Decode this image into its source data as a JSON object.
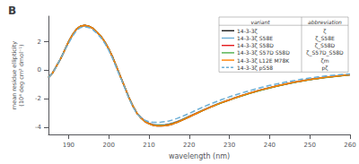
{
  "chart_data": {
    "type": "line",
    "title": "B",
    "xlabel": "wavelength (nm)",
    "ylabel": "mean residue ellipticity\n(10⁴ deg cm² dmol⁻¹)",
    "xlim": [
      185,
      260
    ],
    "xticks": [
      190,
      200,
      210,
      220,
      230,
      240,
      250,
      260
    ],
    "ylim": [
      -4.5,
      3.8
    ],
    "yticks": [
      -4,
      -2,
      0,
      2
    ],
    "grid": false,
    "legend": "upper right",
    "legend_header": [
      "variant",
      "abbreviation"
    ],
    "x": [
      185,
      186,
      187,
      188,
      189,
      190,
      191,
      192,
      193,
      194,
      195,
      196,
      197,
      198,
      199,
      200,
      201,
      202,
      203,
      204,
      205,
      206,
      207,
      208,
      209,
      210,
      211,
      212,
      213,
      214,
      215,
      216,
      217,
      218,
      219,
      220,
      221,
      222,
      223,
      224,
      225,
      226,
      227,
      228,
      229,
      230,
      231,
      232,
      233,
      234,
      235,
      236,
      237,
      238,
      239,
      240,
      241,
      242,
      243,
      244,
      245,
      246,
      247,
      248,
      249,
      250,
      251,
      252,
      253,
      254,
      255,
      256,
      257,
      258,
      259,
      260
    ],
    "series": [
      {
        "name": "14-3-3ζ",
        "abbreviation": "ζ",
        "color": "#1a1a1a",
        "line_style": "solid",
        "values": [
          -0.5,
          -0.2,
          0.3,
          0.8,
          1.4,
          2.0,
          2.5,
          2.9,
          3.1,
          3.15,
          3.1,
          2.95,
          2.7,
          2.4,
          2.0,
          1.5,
          0.9,
          0.2,
          -0.5,
          -1.2,
          -1.9,
          -2.5,
          -3.0,
          -3.35,
          -3.6,
          -3.75,
          -3.85,
          -3.9,
          -3.9,
          -3.88,
          -3.83,
          -3.75,
          -3.65,
          -3.53,
          -3.4,
          -3.27,
          -3.13,
          -3.0,
          -2.87,
          -2.74,
          -2.62,
          -2.5,
          -2.38,
          -2.27,
          -2.17,
          -2.07,
          -1.97,
          -1.87,
          -1.78,
          -1.69,
          -1.6,
          -1.52,
          -1.44,
          -1.36,
          -1.29,
          -1.22,
          -1.15,
          -1.08,
          -1.02,
          -0.96,
          -0.9,
          -0.84,
          -0.79,
          -0.74,
          -0.69,
          -0.64,
          -0.6,
          -0.56,
          -0.52,
          -0.48,
          -0.45,
          -0.42,
          -0.39,
          -0.36,
          -0.33,
          -0.3
        ]
      },
      {
        "name": "14-3-3ζ S58E",
        "abbreviation": "ζ_S58E",
        "color": "#6baed6",
        "line_style": "solid",
        "values": [
          -0.5,
          -0.2,
          0.3,
          0.8,
          1.4,
          2.0,
          2.5,
          2.9,
          3.1,
          3.15,
          3.1,
          2.95,
          2.7,
          2.4,
          2.0,
          1.5,
          0.9,
          0.2,
          -0.5,
          -1.2,
          -1.9,
          -2.5,
          -3.0,
          -3.3,
          -3.55,
          -3.7,
          -3.78,
          -3.82,
          -3.82,
          -3.8,
          -3.75,
          -3.68,
          -3.58,
          -3.47,
          -3.34,
          -3.22,
          -3.09,
          -2.96,
          -2.83,
          -2.71,
          -2.59,
          -2.47,
          -2.36,
          -2.25,
          -2.15,
          -2.05,
          -1.95,
          -1.86,
          -1.77,
          -1.68,
          -1.59,
          -1.51,
          -1.43,
          -1.35,
          -1.28,
          -1.21,
          -1.14,
          -1.07,
          -1.01,
          -0.95,
          -0.89,
          -0.83,
          -0.78,
          -0.73,
          -0.68,
          -0.63,
          -0.59,
          -0.55,
          -0.51,
          -0.47,
          -0.44,
          -0.41,
          -0.38,
          -0.35,
          -0.32,
          -0.29
        ]
      },
      {
        "name": "14-3-3ζ S58D",
        "abbreviation": "ζ_S58D",
        "color": "#e41a1c",
        "line_style": "solid",
        "values": [
          -0.5,
          -0.2,
          0.3,
          0.8,
          1.4,
          2.0,
          2.5,
          2.9,
          3.1,
          3.15,
          3.1,
          2.95,
          2.7,
          2.4,
          2.0,
          1.5,
          0.9,
          0.2,
          -0.5,
          -1.2,
          -1.9,
          -2.5,
          -3.0,
          -3.32,
          -3.57,
          -3.72,
          -3.82,
          -3.86,
          -3.86,
          -3.84,
          -3.79,
          -3.71,
          -3.61,
          -3.5,
          -3.37,
          -3.24,
          -3.11,
          -2.98,
          -2.85,
          -2.73,
          -2.61,
          -2.49,
          -2.38,
          -2.27,
          -2.17,
          -2.07,
          -1.97,
          -1.88,
          -1.79,
          -1.7,
          -1.61,
          -1.53,
          -1.45,
          -1.37,
          -1.3,
          -1.23,
          -1.16,
          -1.09,
          -1.03,
          -0.97,
          -0.91,
          -0.85,
          -0.8,
          -0.75,
          -0.7,
          -0.65,
          -0.61,
          -0.57,
          -0.53,
          -0.49,
          -0.46,
          -0.43,
          -0.4,
          -0.37,
          -0.34,
          -0.31
        ]
      },
      {
        "name": "14-3-3ζ S57D S58D",
        "abbreviation": "ζ_S57D_S58D",
        "color": "#4daf4a",
        "line_style": "solid",
        "values": [
          -0.5,
          -0.2,
          0.3,
          0.8,
          1.4,
          2.0,
          2.5,
          2.9,
          3.1,
          3.15,
          3.1,
          2.95,
          2.7,
          2.4,
          2.0,
          1.5,
          0.9,
          0.2,
          -0.5,
          -1.2,
          -1.9,
          -2.5,
          -3.0,
          -3.33,
          -3.58,
          -3.73,
          -3.83,
          -3.87,
          -3.87,
          -3.85,
          -3.8,
          -3.72,
          -3.62,
          -3.51,
          -3.38,
          -3.25,
          -3.12,
          -2.99,
          -2.86,
          -2.74,
          -2.62,
          -2.5,
          -2.39,
          -2.28,
          -2.18,
          -2.08,
          -1.98,
          -1.89,
          -1.8,
          -1.71,
          -1.62,
          -1.54,
          -1.46,
          -1.38,
          -1.31,
          -1.24,
          -1.17,
          -1.1,
          -1.04,
          -0.98,
          -0.92,
          -0.86,
          -0.81,
          -0.76,
          -0.71,
          -0.66,
          -0.62,
          -0.58,
          -0.54,
          -0.5,
          -0.47,
          -0.44,
          -0.41,
          -0.38,
          -0.35,
          -0.32
        ]
      },
      {
        "name": "14-3-3ζ L12E M78K",
        "abbreviation": "ζm",
        "color": "#ff7f00",
        "line_style": "solid",
        "values": [
          -0.5,
          -0.2,
          0.3,
          0.8,
          1.4,
          2.0,
          2.5,
          2.9,
          3.1,
          3.15,
          3.1,
          2.95,
          2.7,
          2.4,
          2.0,
          1.5,
          0.9,
          0.2,
          -0.5,
          -1.2,
          -1.9,
          -2.5,
          -3.0,
          -3.35,
          -3.6,
          -3.75,
          -3.85,
          -3.9,
          -3.9,
          -3.88,
          -3.83,
          -3.75,
          -3.65,
          -3.53,
          -3.4,
          -3.27,
          -3.13,
          -3.0,
          -2.87,
          -2.74,
          -2.62,
          -2.5,
          -2.38,
          -2.27,
          -2.17,
          -2.07,
          -1.97,
          -1.87,
          -1.78,
          -1.69,
          -1.6,
          -1.52,
          -1.44,
          -1.36,
          -1.29,
          -1.22,
          -1.15,
          -1.08,
          -1.02,
          -0.96,
          -0.9,
          -0.84,
          -0.79,
          -0.74,
          -0.69,
          -0.64,
          -0.6,
          -0.56,
          -0.52,
          -0.48,
          -0.45,
          -0.42,
          -0.39,
          -0.36,
          -0.33,
          -0.3
        ]
      },
      {
        "name": "14-3-3ζ pS58",
        "abbreviation": "pζ",
        "color": "#6baed6",
        "line_style": "dashed",
        "values": [
          -0.5,
          -0.2,
          0.3,
          0.8,
          1.4,
          1.9,
          2.4,
          2.8,
          3.0,
          3.05,
          3.0,
          2.85,
          2.6,
          2.3,
          1.9,
          1.4,
          0.8,
          0.1,
          -0.55,
          -1.25,
          -1.95,
          -2.55,
          -3.05,
          -3.3,
          -3.5,
          -3.6,
          -3.65,
          -3.65,
          -3.63,
          -3.6,
          -3.55,
          -3.47,
          -3.37,
          -3.26,
          -3.14,
          -3.02,
          -2.89,
          -2.76,
          -2.63,
          -2.51,
          -2.39,
          -2.28,
          -2.17,
          -2.06,
          -1.96,
          -1.86,
          -1.77,
          -1.68,
          -1.59,
          -1.51,
          -1.43,
          -1.35,
          -1.27,
          -1.2,
          -1.13,
          -1.06,
          -1.0,
          -0.94,
          -0.88,
          -0.82,
          -0.77,
          -0.72,
          -0.67,
          -0.62,
          -0.58,
          -0.54,
          -0.5,
          -0.46,
          -0.43,
          -0.4,
          -0.37,
          -0.34,
          -0.31,
          -0.29,
          -0.27,
          -0.25
        ]
      }
    ]
  }
}
